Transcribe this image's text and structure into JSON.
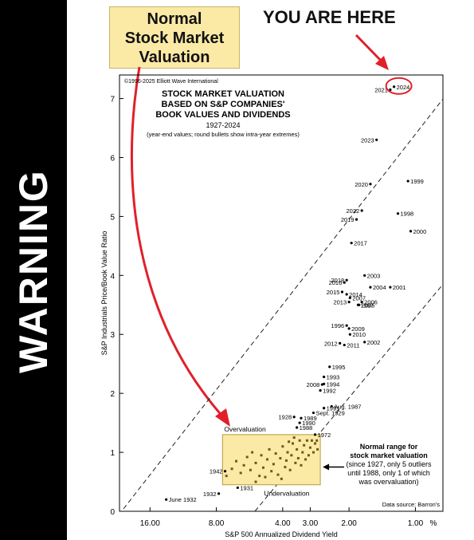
{
  "banner": {
    "text": "WARNING"
  },
  "callout": {
    "line1": "Normal",
    "line2": "Stock Market",
    "line3": "Valuation"
  },
  "you_are_here": "YOU ARE HERE",
  "copyright": "©1996-2025 Elliott Wave International",
  "data_source": "Data source: Barron's",
  "annotations": {
    "overvaluation": "Overvaluation",
    "undervaluation": "Undervaluation",
    "normal_range": [
      "Normal range for",
      "stock market valuation"
    ],
    "normal_note": [
      "(since 1927, only 5 outliers",
      "until 1988, only 1 of which",
      "was overvaluation)"
    ]
  },
  "chart_data": {
    "type": "scatter",
    "title": [
      "STOCK MARKET VALUATION",
      "BASED ON S&P COMPANIES'",
      "BOOK VALUES AND DIVIDENDS"
    ],
    "subtitle": "1927-2024",
    "note": "(year-end values; round bullets show intra-year extremes)",
    "xlabel": "S&P 500 Annualized Dividend Yield",
    "ylabel": "S&P Industrials Price/Book Value Ratio",
    "x_scale": "log-reversed",
    "x_unit": "%",
    "xlim": [
      22,
      0.75
    ],
    "ylim": [
      0,
      7.4
    ],
    "x_ticks": [
      16,
      8,
      4,
      3,
      2,
      1
    ],
    "x_tick_labels": [
      "16.00",
      "8.00",
      "4.00",
      "3.00",
      "2.00",
      "1.00"
    ],
    "y_ticks": [
      0,
      1,
      2,
      3,
      4,
      5,
      6,
      7
    ],
    "y_tick_labels": [
      "0",
      "1",
      "2",
      "3",
      "4",
      "5",
      "6",
      "7"
    ],
    "grid": false,
    "points": [
      {
        "label": "2024",
        "x": 1.25,
        "y": 7.2
      },
      {
        "label": "2021",
        "x": 1.3,
        "y": 7.15
      },
      {
        "label": "2023",
        "x": 1.5,
        "y": 6.3
      },
      {
        "label": "2020",
        "x": 1.6,
        "y": 5.55
      },
      {
        "label": "1999",
        "x": 1.08,
        "y": 5.6
      },
      {
        "label": "2022",
        "x": 1.75,
        "y": 5.1
      },
      {
        "label": "2019",
        "x": 1.85,
        "y": 4.95
      },
      {
        "label": "1998",
        "x": 1.2,
        "y": 5.05
      },
      {
        "label": "2000",
        "x": 1.05,
        "y": 4.75
      },
      {
        "label": "2017",
        "x": 1.95,
        "y": 4.55
      },
      {
        "label": "2018",
        "x": 2.05,
        "y": 3.92
      },
      {
        "label": "2016",
        "x": 2.1,
        "y": 3.88
      },
      {
        "label": "2003",
        "x": 1.7,
        "y": 4.0
      },
      {
        "label": "2004",
        "x": 1.6,
        "y": 3.8
      },
      {
        "label": "2001",
        "x": 1.3,
        "y": 3.8
      },
      {
        "label": "2015",
        "x": 2.15,
        "y": 3.72
      },
      {
        "label": "2014",
        "x": 2.05,
        "y": 3.68
      },
      {
        "label": "2007",
        "x": 1.98,
        "y": 3.62
      },
      {
        "label": "2013",
        "x": 2.0,
        "y": 3.55
      },
      {
        "label": "1997",
        "x": 1.82,
        "y": 3.5
      },
      {
        "label": "2006",
        "x": 1.75,
        "y": 3.55
      },
      {
        "label": "2005",
        "x": 1.8,
        "y": 3.5
      },
      {
        "label": "1996",
        "x": 2.05,
        "y": 3.15
      },
      {
        "label": "2009",
        "x": 2.0,
        "y": 3.1
      },
      {
        "label": "2010",
        "x": 1.98,
        "y": 3.0
      },
      {
        "label": "2012",
        "x": 2.2,
        "y": 2.85
      },
      {
        "label": "2011",
        "x": 2.1,
        "y": 2.82
      },
      {
        "label": "2002",
        "x": 1.7,
        "y": 2.87
      },
      {
        "label": "1995",
        "x": 2.45,
        "y": 2.45
      },
      {
        "label": "1993",
        "x": 2.6,
        "y": 2.28
      },
      {
        "label": "2008",
        "x": 2.65,
        "y": 2.15
      },
      {
        "label": "1994",
        "x": 2.6,
        "y": 2.16
      },
      {
        "label": "1992",
        "x": 2.7,
        "y": 2.05
      },
      {
        "label": "Aug. 1987",
        "x": 2.4,
        "y": 1.78
      },
      {
        "label": "1991",
        "x": 2.6,
        "y": 1.75
      },
      {
        "label": "Sept. 1929",
        "x": 2.9,
        "y": 1.67
      },
      {
        "label": "1928",
        "x": 3.55,
        "y": 1.6
      },
      {
        "label": "1989",
        "x": 3.3,
        "y": 1.58
      },
      {
        "label": "1990",
        "x": 3.35,
        "y": 1.5
      },
      {
        "label": "1988",
        "x": 3.45,
        "y": 1.42
      },
      {
        "label": "1972",
        "x": 2.85,
        "y": 1.3
      },
      {
        "label": "1942",
        "x": 7.3,
        "y": 0.68
      },
      {
        "label": "1931",
        "x": 6.4,
        "y": 0.4
      },
      {
        "label": "1932",
        "x": 7.8,
        "y": 0.3
      },
      {
        "label": "June 1932",
        "x": 13.5,
        "y": 0.2
      }
    ],
    "normal_range_box": {
      "x": [
        7.5,
        2.7
      ],
      "y": [
        0.45,
        1.3
      ]
    },
    "normal_range_points": [
      [
        7.2,
        0.6
      ],
      [
        6.8,
        0.72
      ],
      [
        6.5,
        0.85
      ],
      [
        6.2,
        0.65
      ],
      [
        6.0,
        0.78
      ],
      [
        5.8,
        0.92
      ],
      [
        5.6,
        0.7
      ],
      [
        5.5,
        1.0
      ],
      [
        5.3,
        0.82
      ],
      [
        5.1,
        0.6
      ],
      [
        5.0,
        0.95
      ],
      [
        4.9,
        0.74
      ],
      [
        4.7,
        0.88
      ],
      [
        4.6,
        1.05
      ],
      [
        4.5,
        0.68
      ],
      [
        4.4,
        0.8
      ],
      [
        4.3,
        0.98
      ],
      [
        4.2,
        0.62
      ],
      [
        4.1,
        0.9
      ],
      [
        4.0,
        1.1
      ],
      [
        3.9,
        0.75
      ],
      [
        3.85,
        0.86
      ],
      [
        3.8,
        1.0
      ],
      [
        3.7,
        0.7
      ],
      [
        3.65,
        0.95
      ],
      [
        3.6,
        1.15
      ],
      [
        3.5,
        0.82
      ],
      [
        3.45,
        1.05
      ],
      [
        3.4,
        0.9
      ],
      [
        3.35,
        1.2
      ],
      [
        3.3,
        0.78
      ],
      [
        3.25,
        1.0
      ],
      [
        3.2,
        1.12
      ],
      [
        3.15,
        0.88
      ],
      [
        3.1,
        1.2
      ],
      [
        3.05,
        0.95
      ],
      [
        3.0,
        1.08
      ],
      [
        2.95,
        1.2
      ],
      [
        2.9,
        1.0
      ],
      [
        2.85,
        1.15
      ],
      [
        2.8,
        1.2
      ],
      [
        2.78,
        1.05
      ],
      [
        3.55,
        1.25
      ],
      [
        3.75,
        1.18
      ],
      [
        4.05,
        0.55
      ],
      [
        5.3,
        0.5
      ],
      [
        4.8,
        0.58
      ]
    ]
  }
}
